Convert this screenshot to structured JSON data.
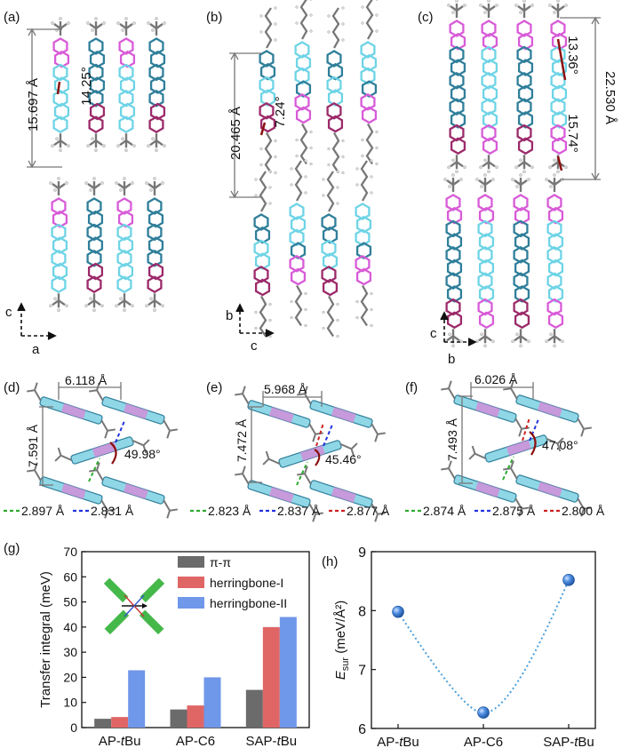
{
  "panels": {
    "a": {
      "label": "(a)",
      "length": "15.697 Å",
      "angle": "14.25°",
      "axes": {
        "vertical": "c",
        "horizontal": "a"
      }
    },
    "b": {
      "label": "(b)",
      "length": "20.465 Å",
      "angle": "7.24°",
      "axes": {
        "vertical": "b",
        "horizontal": "c"
      }
    },
    "c": {
      "label": "(c)",
      "length": "22.530 Å",
      "angle_top": "13.36°",
      "angle_bottom": "15.74°",
      "axes": {
        "vertical": "c",
        "horizontal": "b"
      }
    },
    "d": {
      "label": "(d)",
      "width": "6.118 Å",
      "height": "7.591 Å",
      "angle": "49.98°",
      "legend": [
        {
          "text": "2.897 Å",
          "color": "#2eaa2e"
        },
        {
          "text": "2.831 Å",
          "color": "#2233dd"
        }
      ]
    },
    "e": {
      "label": "(e)",
      "width": "5.968 Å",
      "height": "7.472 Å",
      "angle": "45.46°",
      "legend": [
        {
          "text": "2.823 Å",
          "color": "#2eaa2e"
        },
        {
          "text": "2.837 Å",
          "color": "#2233dd"
        },
        {
          "text": "2.877 Å",
          "color": "#cc2222"
        }
      ]
    },
    "f": {
      "label": "(f)",
      "width": "6.026 Å",
      "height": "7.493 Å",
      "angle": "47.08°",
      "legend": [
        {
          "text": "2.874 Å",
          "color": "#2eaa2e"
        },
        {
          "text": "2.875 Å",
          "color": "#2233dd"
        },
        {
          "text": "2.800 Å",
          "color": "#cc2222"
        }
      ]
    }
  },
  "chart_data": [
    {
      "panel": "(g)",
      "type": "bar",
      "ylabel": "Transfer integral (meV)",
      "ylim": [
        0,
        70
      ],
      "yticks": [
        0,
        10,
        20,
        30,
        40,
        50,
        60,
        70
      ],
      "categories": [
        "AP-tBu",
        "AP-C6",
        "SAP-tBu"
      ],
      "category_labels": [
        {
          "pre": "AP-",
          "italic": "t",
          "post": "Bu"
        },
        {
          "pre": "AP-C6",
          "italic": "",
          "post": ""
        },
        {
          "pre": "SAP-",
          "italic": "t",
          "post": "Bu"
        }
      ],
      "series": [
        {
          "name": "π-π",
          "color": "#6b6b6b",
          "values": [
            3.5,
            7.2,
            15.0
          ]
        },
        {
          "name": "herringbone-I",
          "color": "#e06666",
          "values": [
            4.2,
            8.8,
            40.0
          ]
        },
        {
          "name": "herringbone-II",
          "color": "#6f97ea",
          "values": [
            22.8,
            20.0,
            44.0
          ]
        }
      ],
      "legend_position": "top-right"
    },
    {
      "panel": "(h)",
      "type": "line",
      "ylabel": {
        "main": "E",
        "sub": "sur",
        "unit": " (meV/Å²)"
      },
      "ylim": [
        6,
        9
      ],
      "yticks": [
        6,
        7,
        8,
        9
      ],
      "categories": [
        "AP-tBu",
        "AP-C6",
        "SAP-tBu"
      ],
      "category_labels": [
        {
          "pre": "AP-",
          "italic": "t",
          "post": "Bu"
        },
        {
          "pre": "AP-C6",
          "italic": "",
          "post": ""
        },
        {
          "pre": "SAP-",
          "italic": "t",
          "post": "Bu"
        }
      ],
      "values": [
        7.98,
        6.27,
        8.52
      ],
      "point_color": "#3b78d8",
      "line_color": "#4a9fd9"
    }
  ]
}
